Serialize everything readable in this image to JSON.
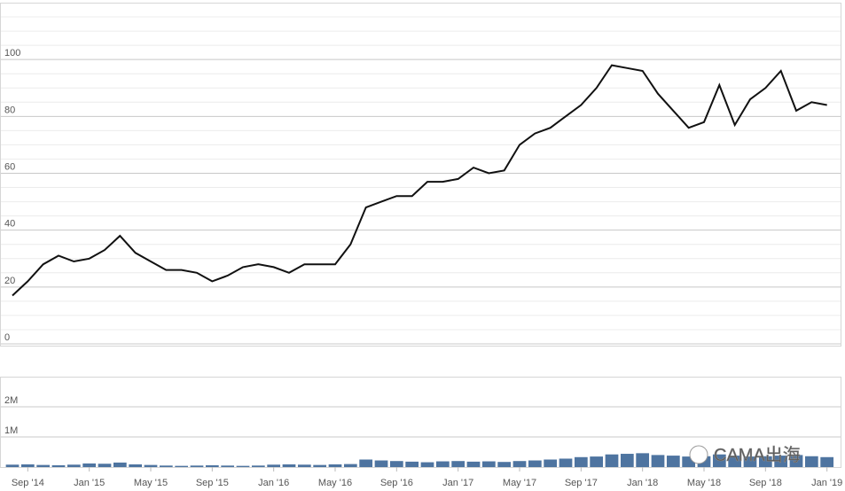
{
  "chart_data": [
    {
      "type": "line",
      "color": "#111111",
      "x": [
        "2014-08",
        "2014-09",
        "2014-10",
        "2014-11",
        "2014-12",
        "2015-01",
        "2015-02",
        "2015-03",
        "2015-04",
        "2015-05",
        "2015-06",
        "2015-07",
        "2015-08",
        "2015-09",
        "2015-10",
        "2015-11",
        "2015-12",
        "2016-01",
        "2016-02",
        "2016-03",
        "2016-04",
        "2016-05",
        "2016-06",
        "2016-07",
        "2016-08",
        "2016-09",
        "2016-10",
        "2016-11",
        "2016-12",
        "2017-01",
        "2017-02",
        "2017-03",
        "2017-04",
        "2017-05",
        "2017-06",
        "2017-07",
        "2017-08",
        "2017-09",
        "2017-10",
        "2017-11",
        "2017-12",
        "2018-01",
        "2018-02",
        "2018-03",
        "2018-04",
        "2018-05",
        "2018-06",
        "2018-07",
        "2018-08",
        "2018-09",
        "2018-10",
        "2018-11",
        "2018-12",
        "2019-01"
      ],
      "values": [
        17,
        22,
        28,
        31,
        29,
        30,
        33,
        38,
        32,
        29,
        26,
        26,
        25,
        22,
        24,
        27,
        28,
        27,
        25,
        28,
        28,
        28,
        35,
        48,
        50,
        52,
        52,
        57,
        57,
        58,
        62,
        60,
        61,
        70,
        74,
        76,
        80,
        84,
        90,
        98,
        97,
        96,
        88,
        82,
        76,
        78,
        91,
        77,
        86,
        90,
        96,
        82,
        85,
        84
      ],
      "xlim": [
        "2014-08",
        "2019-02"
      ],
      "ylim": [
        0,
        120
      ],
      "yticks": [
        0,
        20,
        40,
        60,
        80,
        100
      ],
      "minor_yticks": [
        5,
        10,
        15,
        25,
        30,
        35,
        45,
        50,
        55,
        65,
        70,
        75,
        85,
        90,
        95,
        105,
        110,
        115
      ],
      "grid": true
    },
    {
      "type": "bar",
      "color": "#4e74a0",
      "x": [
        "2014-08",
        "2014-09",
        "2014-10",
        "2014-11",
        "2014-12",
        "2015-01",
        "2015-02",
        "2015-03",
        "2015-04",
        "2015-05",
        "2015-06",
        "2015-07",
        "2015-08",
        "2015-09",
        "2015-10",
        "2015-11",
        "2015-12",
        "2016-01",
        "2016-02",
        "2016-03",
        "2016-04",
        "2016-05",
        "2016-06",
        "2016-07",
        "2016-08",
        "2016-09",
        "2016-10",
        "2016-11",
        "2016-12",
        "2017-01",
        "2017-02",
        "2017-03",
        "2017-04",
        "2017-05",
        "2017-06",
        "2017-07",
        "2017-08",
        "2017-09",
        "2017-10",
        "2017-11",
        "2017-12",
        "2018-01",
        "2018-02",
        "2018-03",
        "2018-04",
        "2018-05",
        "2018-06",
        "2018-07",
        "2018-08",
        "2018-09",
        "2018-10",
        "2018-11",
        "2018-12",
        "2019-01"
      ],
      "values": [
        80000,
        90000,
        70000,
        60000,
        80000,
        120000,
        110000,
        150000,
        90000,
        70000,
        50000,
        40000,
        50000,
        60000,
        50000,
        40000,
        50000,
        80000,
        90000,
        80000,
        70000,
        90000,
        100000,
        250000,
        220000,
        200000,
        180000,
        160000,
        190000,
        200000,
        180000,
        190000,
        170000,
        200000,
        220000,
        250000,
        280000,
        330000,
        350000,
        420000,
        440000,
        460000,
        400000,
        380000,
        350000,
        360000,
        420000,
        380000,
        350000,
        360000,
        380000,
        400000,
        360000,
        330000
      ],
      "xlim": [
        "2014-08",
        "2019-02"
      ],
      "ylim": [
        0,
        3000000
      ],
      "yticks": [
        {
          "value": 1000000,
          "label": "1M"
        },
        {
          "value": 2000000,
          "label": "2M"
        }
      ],
      "xticks": [
        {
          "value": "2014-09",
          "label": "Sep '14"
        },
        {
          "value": "2015-01",
          "label": "Jan '15"
        },
        {
          "value": "2015-05",
          "label": "May '15"
        },
        {
          "value": "2015-09",
          "label": "Sep '15"
        },
        {
          "value": "2016-01",
          "label": "Jan '16"
        },
        {
          "value": "2016-05",
          "label": "May '16"
        },
        {
          "value": "2016-09",
          "label": "Sep '16"
        },
        {
          "value": "2017-01",
          "label": "Jan '17"
        },
        {
          "value": "2017-05",
          "label": "May '17"
        },
        {
          "value": "2017-09",
          "label": "Sep '17"
        },
        {
          "value": "2018-01",
          "label": "Jan '18"
        },
        {
          "value": "2018-05",
          "label": "May '18"
        },
        {
          "value": "2018-09",
          "label": "Sep '18"
        },
        {
          "value": "2019-01",
          "label": "Jan '19"
        }
      ],
      "grid": true,
      "watermark": "CAMA出海"
    }
  ]
}
